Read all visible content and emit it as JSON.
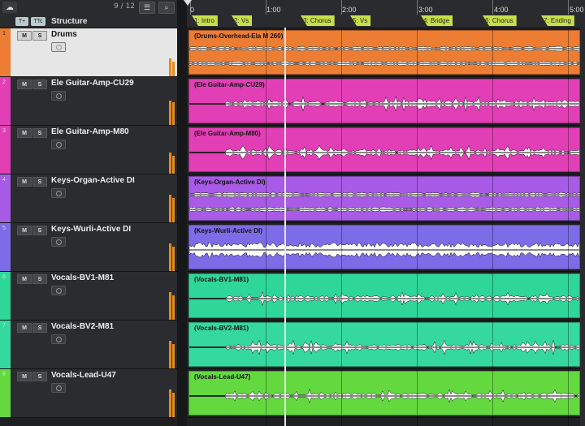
{
  "header": {
    "title": "Structure",
    "track_count": "9 / 12",
    "tag_a": "T+",
    "tag_b": "TTc"
  },
  "ruler": {
    "ticks": [
      "0",
      "1:00",
      "2:00",
      "3:00",
      "4:00",
      "5:00"
    ],
    "markers": [
      "1: Intro",
      "2: Vs",
      "3: Chorus",
      "5: Vs",
      "4: Bridge",
      "6: Chorus",
      "7: Ending"
    ]
  },
  "tracks": [
    {
      "num": "1",
      "name": "Drums",
      "clip": "(Drums-Overhead-Ela M 260)",
      "color": "#ec7d32",
      "selected": true
    },
    {
      "num": "2",
      "name": "Ele Guitar-Amp-CU29",
      "clip": "(Ele Guitar-Amp-CU29)",
      "color": "#e23fb6",
      "selected": false
    },
    {
      "num": "3",
      "name": "Ele Guitar-Amp-M80",
      "clip": "(Ele Guitar-Amp-M80)",
      "color": "#e23fb6",
      "selected": false
    },
    {
      "num": "4",
      "name": "Keys-Organ-Active DI",
      "clip": "(Keys-Organ-Active DI)",
      "color": "#a85be6",
      "selected": false
    },
    {
      "num": "5",
      "name": "Keys-Wurli-Active DI",
      "clip": "(Keys-Wurli-Active DI)",
      "color": "#7d6ce8",
      "selected": false
    },
    {
      "num": "6",
      "name": "Vocals-BV1-M81",
      "clip": "(Vocals-BV1-M81)",
      "color": "#2fd69a",
      "selected": false
    },
    {
      "num": "7",
      "name": "Vocals-BV2-M81",
      "clip": "(Vocals-BV2-M81)",
      "color": "#35d9a0",
      "selected": false
    },
    {
      "num": "8",
      "name": "Vocals-Lead-U47",
      "clip": "(Vocals-Lead-U47)",
      "color": "#63d93f",
      "selected": false
    }
  ],
  "buttons": {
    "mute": "M",
    "solo": "S"
  },
  "icons": {
    "logo": "cloud-icon",
    "list": "list-icon",
    "search": "search-icon",
    "record": "record-enable-icon"
  }
}
